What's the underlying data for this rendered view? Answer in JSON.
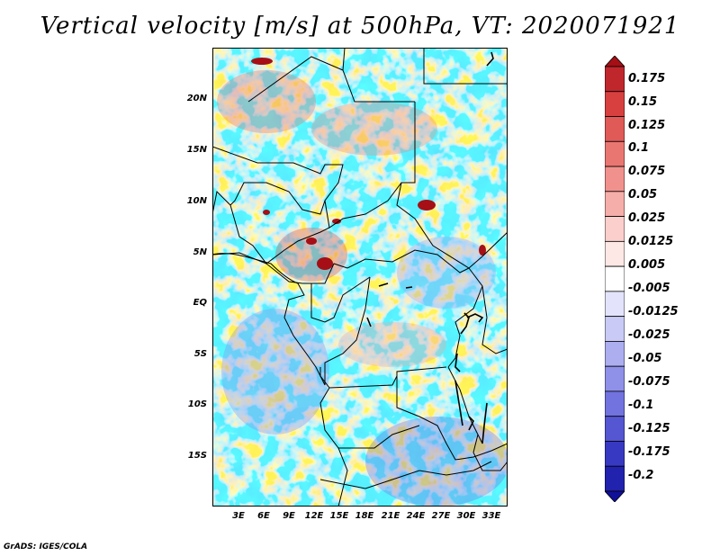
{
  "title": "Vertical velocity [m/s] at 500hPa, VT: 2020071921",
  "credit": "GrADS: IGES/COLA",
  "lat_labels": [
    "20N",
    "15N",
    "10N",
    "5N",
    "EQ",
    "5S",
    "10S",
    "15S"
  ],
  "lon_labels": [
    "3E",
    "6E",
    "9E",
    "12E",
    "15E",
    "18E",
    "21E",
    "24E",
    "27E",
    "30E",
    "33E"
  ],
  "colorbar": {
    "labels": [
      "0.175",
      "0.15",
      "0.125",
      "0.1",
      "0.075",
      "0.05",
      "0.025",
      "0.0125",
      "0.005",
      "-0.005",
      "-0.0125",
      "-0.025",
      "-0.05",
      "-0.075",
      "-0.1",
      "-0.125",
      "-0.175",
      "-0.2"
    ],
    "colors": [
      "#a50f15",
      "#c0272d",
      "#d7403f",
      "#e05a58",
      "#ea7672",
      "#f1918d",
      "#f6aeaa",
      "#fbcfcc",
      "#fde8e6",
      "#ffffff",
      "#e3e4fb",
      "#c9cbf6",
      "#acaef0",
      "#8f90e8",
      "#7273df",
      "#5556d2",
      "#3839c2",
      "#2122ae",
      "#10109a"
    ]
  },
  "colors": {
    "positive": "#d9534f",
    "negative": "#6a6ee0",
    "land_outline": "#000000"
  }
}
